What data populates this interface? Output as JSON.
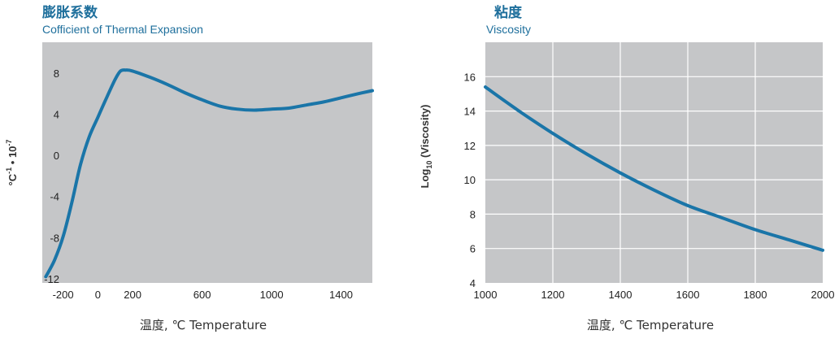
{
  "chart_data": [
    {
      "type": "line",
      "title": "膨胀系数",
      "subtitle": "Cofficient of Thermal Expansion",
      "xlabel": "温度, ℃ Temperature",
      "ylabel_base": "°C",
      "ylabel_exp1": "-1",
      "ylabel_mid": " • 10",
      "ylabel_exp2": "-7",
      "xlim": [
        -320,
        1580
      ],
      "ylim": [
        -12.4,
        11
      ],
      "xticks": [
        -200,
        0,
        200,
        600,
        1000,
        1400
      ],
      "xtick_labels": [
        "-200",
        "0",
        "200",
        "600",
        "1000",
        "1400"
      ],
      "yticks": [
        8,
        4,
        0,
        -4,
        -8,
        -12
      ],
      "ytick_labels": [
        "8",
        "4",
        "0",
        "-4",
        "-8",
        "-12"
      ],
      "grid": false,
      "colors": {
        "plot_bg": "#c5c6c8",
        "line": "#1a75a8",
        "title": "#1e6f9c"
      },
      "series": [
        {
          "x": [
            -300,
            -250,
            -200,
            -150,
            -100,
            -50,
            0,
            50,
            100,
            130,
            160,
            200,
            300,
            400,
            500,
            600,
            700,
            800,
            900,
            1000,
            1100,
            1200,
            1300,
            1400,
            1500,
            1580
          ],
          "y": [
            -11.8,
            -10.2,
            -7.9,
            -4.6,
            -0.9,
            1.8,
            3.7,
            5.6,
            7.4,
            8.2,
            8.3,
            8.2,
            7.6,
            6.9,
            6.1,
            5.4,
            4.8,
            4.5,
            4.4,
            4.5,
            4.6,
            4.9,
            5.2,
            5.6,
            6.0,
            6.3
          ]
        }
      ]
    },
    {
      "type": "line",
      "title": "粘度",
      "subtitle": "Viscosity",
      "xlabel": "温度, ℃ Temperature",
      "ylabel_base": "Log",
      "ylabel_sub": "10",
      "ylabel_rest": " (Viscosity)",
      "xlim": [
        1000,
        2000
      ],
      "ylim": [
        4,
        18
      ],
      "xticks": [
        1000,
        1200,
        1400,
        1600,
        1800,
        2000
      ],
      "xtick_labels": [
        "1000",
        "1200",
        "1400",
        "1600",
        "1800",
        "2000"
      ],
      "yticks": [
        4,
        6,
        8,
        10,
        12,
        14,
        16
      ],
      "ytick_labels": [
        "4",
        "6",
        "8",
        "10",
        "12",
        "14",
        "16"
      ],
      "grid": true,
      "colors": {
        "plot_bg": "#c5c6c8",
        "line": "#1a75a8",
        "grid": "#ffffff",
        "title": "#1e6f9c"
      },
      "series": [
        {
          "x": [
            1000,
            1100,
            1200,
            1300,
            1400,
            1500,
            1600,
            1700,
            1800,
            1900,
            2000
          ],
          "y": [
            15.4,
            14.0,
            12.7,
            11.5,
            10.4,
            9.4,
            8.5,
            7.8,
            7.1,
            6.5,
            5.9
          ]
        }
      ]
    }
  ]
}
